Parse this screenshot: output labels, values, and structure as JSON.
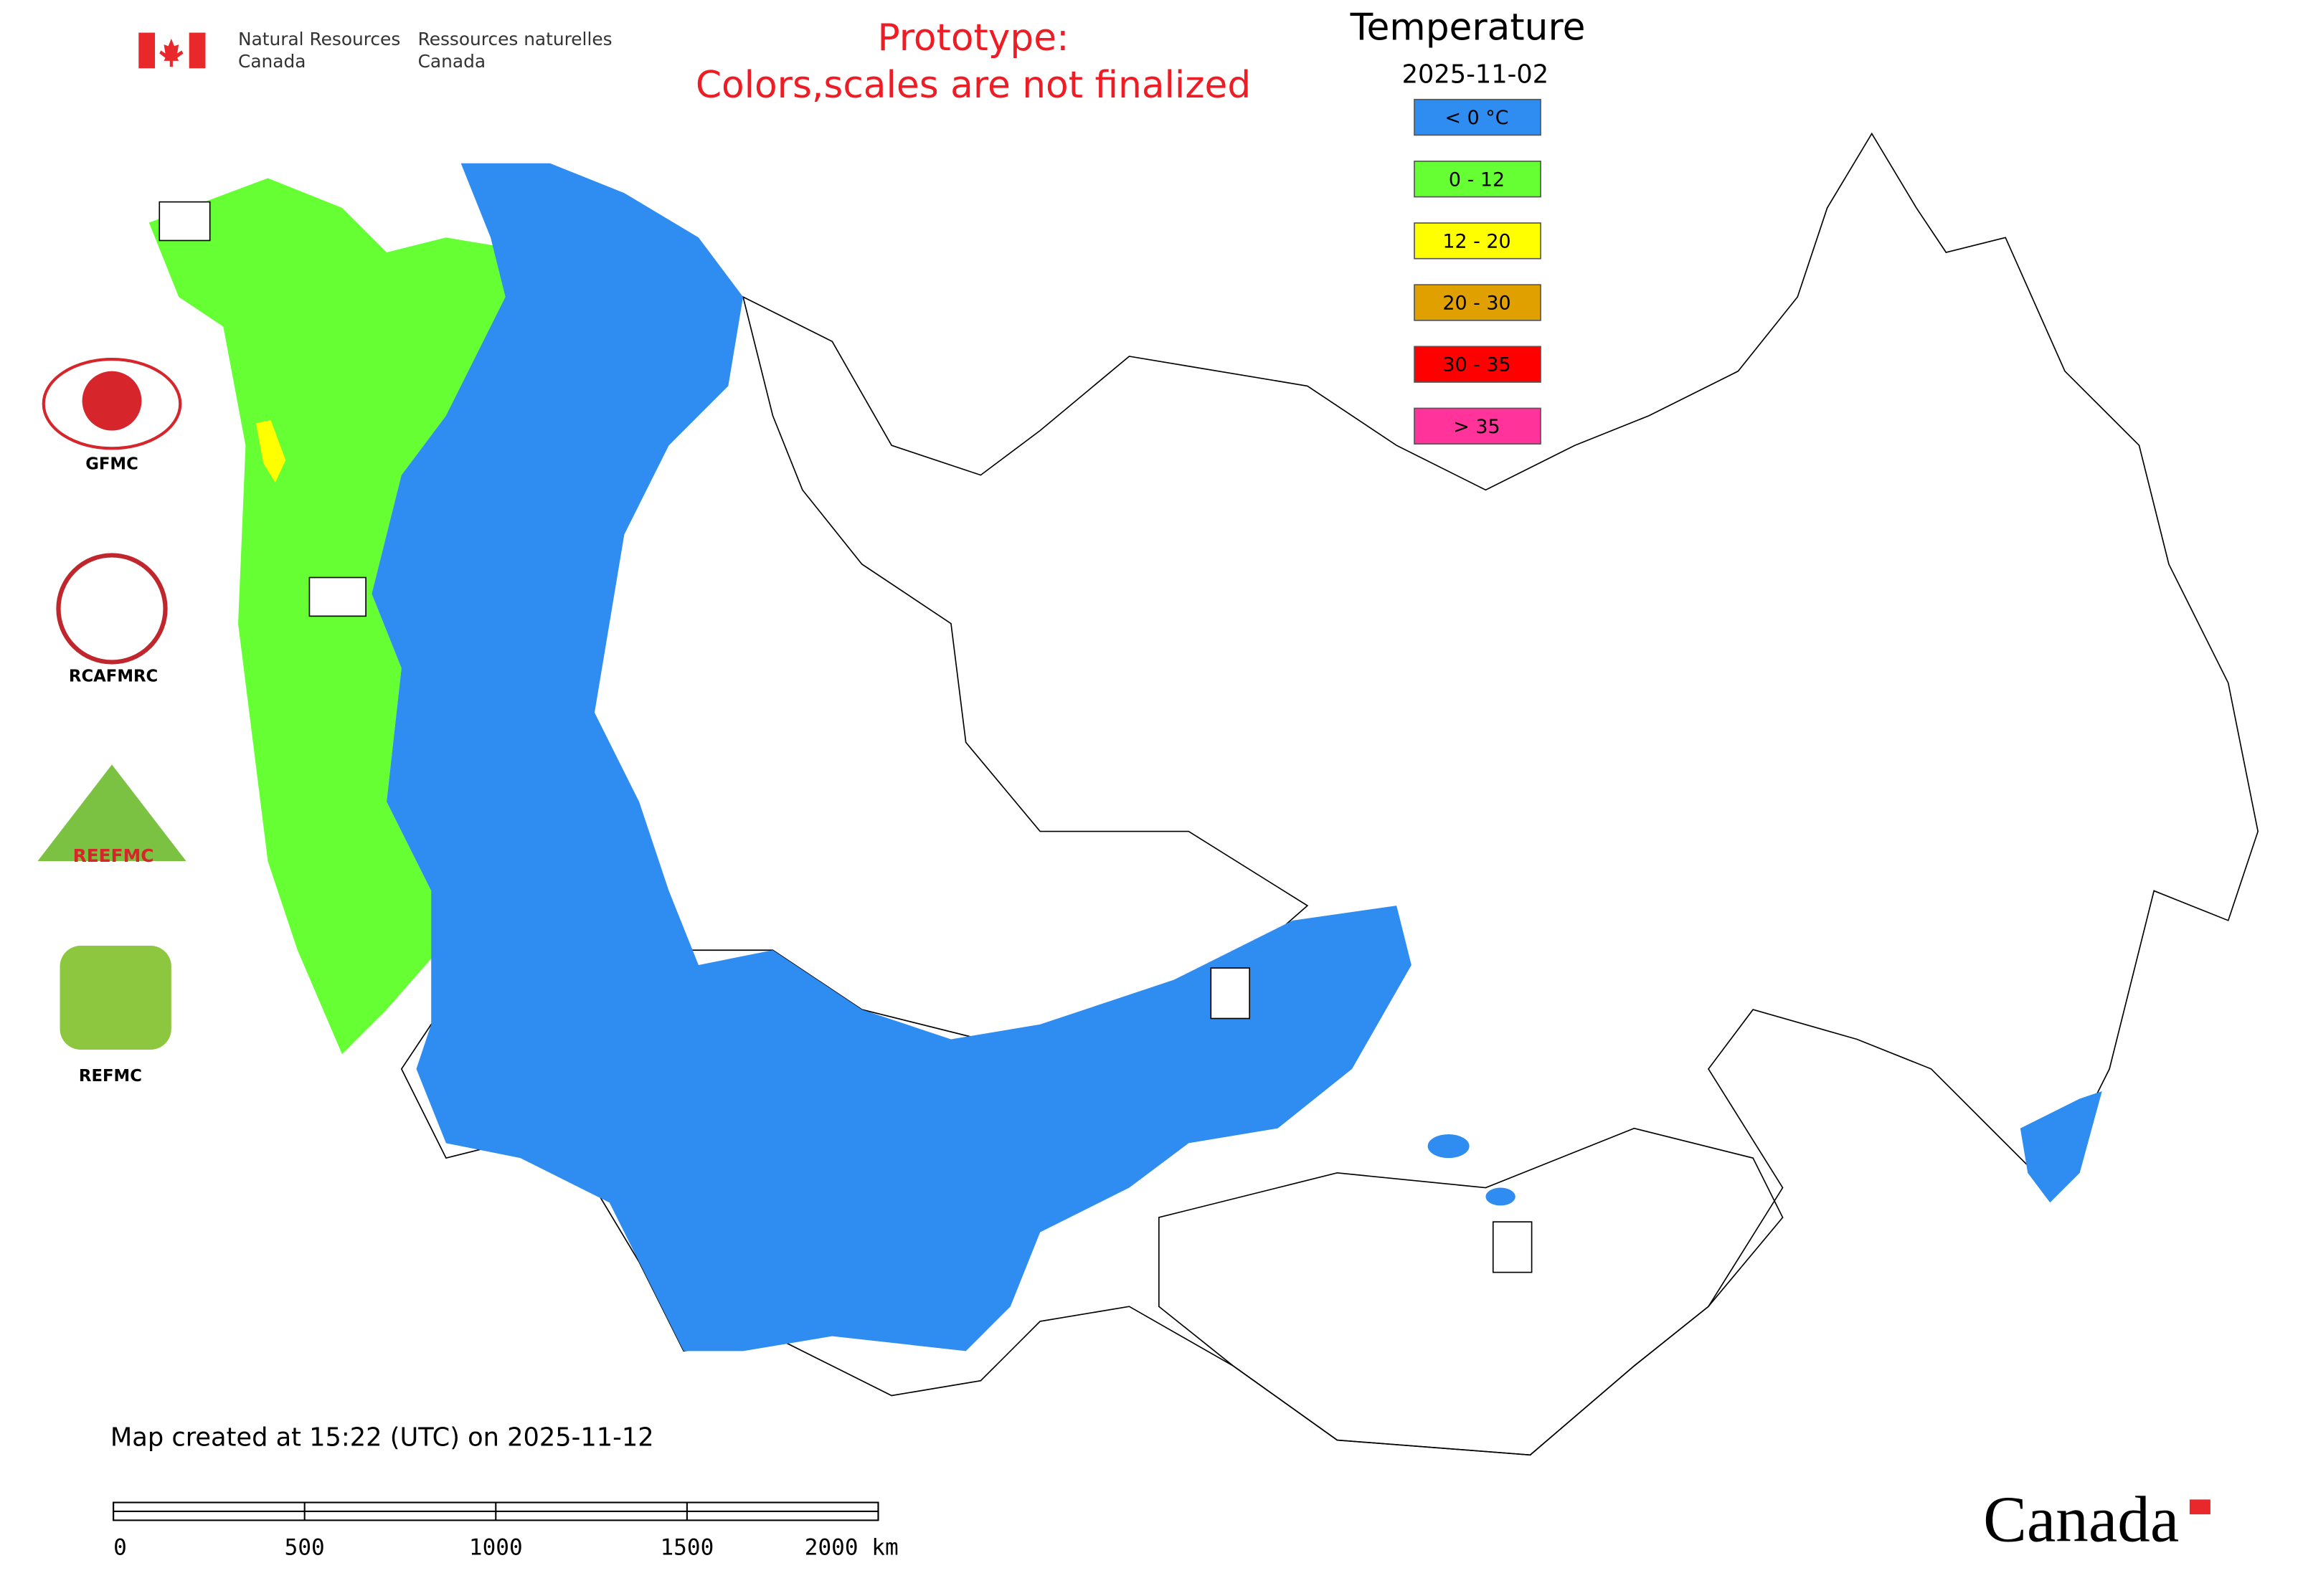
{
  "header": {
    "agency_en": [
      "Natural Resources",
      "Canada"
    ],
    "agency_fr": [
      "Ressources naturelles",
      "Canada"
    ],
    "notice": [
      "Prototype:",
      "Colors,scales are not finalized"
    ]
  },
  "legend": {
    "title": "Temperature",
    "date": "2025-11-02",
    "items": [
      {
        "label": "< 0 °C",
        "color": "#2f8cf0"
      },
      {
        "label": "0 - 12",
        "color": "#66ff33"
      },
      {
        "label": "12 - 20",
        "color": "#ffff00"
      },
      {
        "label": "20 - 30",
        "color": "#e0a000"
      },
      {
        "label": "30 - 35",
        "color": "#ff0000"
      },
      {
        "label": "> 35",
        "color": "#ff3399"
      }
    ]
  },
  "logos": [
    {
      "label": "GFMC"
    },
    {
      "label": "RCAFMRC"
    },
    {
      "label": "REEFMC"
    },
    {
      "label": "REFMC"
    }
  ],
  "footer": {
    "created": "Map created at 15:22 (UTC) on 2025-11-12",
    "scale_labels": [
      "0",
      "500",
      "1000",
      "1500",
      "2000 km"
    ],
    "wordmark": "Canada"
  }
}
